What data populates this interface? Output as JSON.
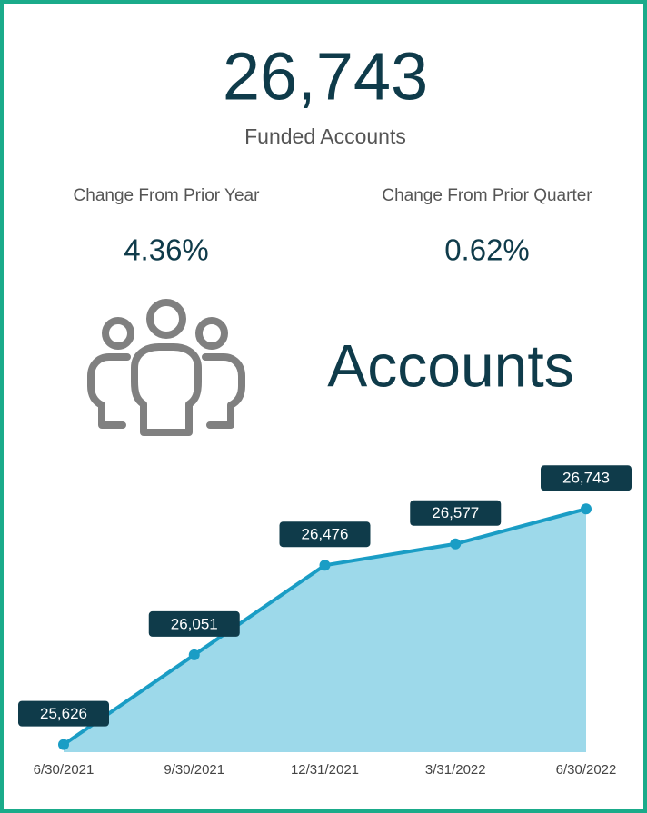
{
  "header": {
    "value": "26,743",
    "label": "Funded Accounts"
  },
  "stats": [
    {
      "label": "Change From Prior Year",
      "value": "4.36%"
    },
    {
      "label": "Change From Prior Quarter",
      "value": "0.62%"
    }
  ],
  "banner": "Accounts",
  "chart_data": {
    "type": "area",
    "categories": [
      "6/30/2021",
      "9/30/2021",
      "12/31/2021",
      "3/31/2022",
      "6/30/2022"
    ],
    "values": [
      25626,
      26051,
      26476,
      26577,
      26743
    ],
    "value_labels": [
      "25,626",
      "26,051",
      "26,476",
      "26,577",
      "26,743"
    ],
    "ylim": [
      25590,
      26830
    ],
    "line_color": "#1a9dc5",
    "fill_color": "#9dd9ea",
    "label_color": "#0f3b4a"
  }
}
